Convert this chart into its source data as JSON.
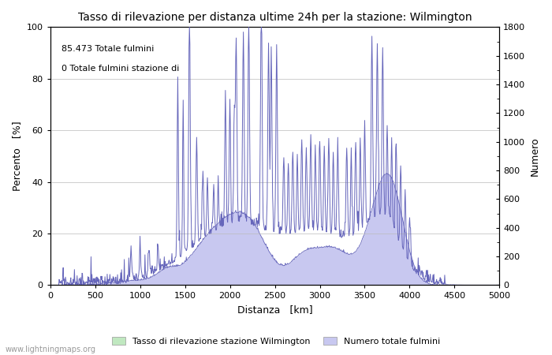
{
  "title": "Tasso di rilevazione per distanza ultime 24h per la stazione: Wilmington",
  "xlabel": "Distanza   [km]",
  "ylabel_left": "Percento   [%]",
  "ylabel_right": "Numero",
  "annotation_line1": "85.473 Totale fulmini",
  "annotation_line2": "0 Totale fulmini stazione di",
  "xlim": [
    0,
    5000
  ],
  "ylim_left": [
    0,
    100
  ],
  "ylim_right": [
    0,
    1800
  ],
  "xticks": [
    0,
    500,
    1000,
    1500,
    2000,
    2500,
    3000,
    3500,
    4000,
    4500,
    5000
  ],
  "yticks_left": [
    0,
    20,
    40,
    60,
    80,
    100
  ],
  "yticks_right": [
    0,
    200,
    400,
    600,
    800,
    1000,
    1200,
    1400,
    1600,
    1800
  ],
  "legend_label_green": "Tasso di rilevazione stazione Wilmington",
  "legend_label_blue": "Numero totale fulmini",
  "fill_color_blue": "#c8c8f0",
  "line_color_blue": "#6666bb",
  "fill_color_green": "#c0e8c0",
  "watermark": "www.lightningmaps.org",
  "background_color": "#ffffff",
  "grid_color": "#bbbbbb"
}
